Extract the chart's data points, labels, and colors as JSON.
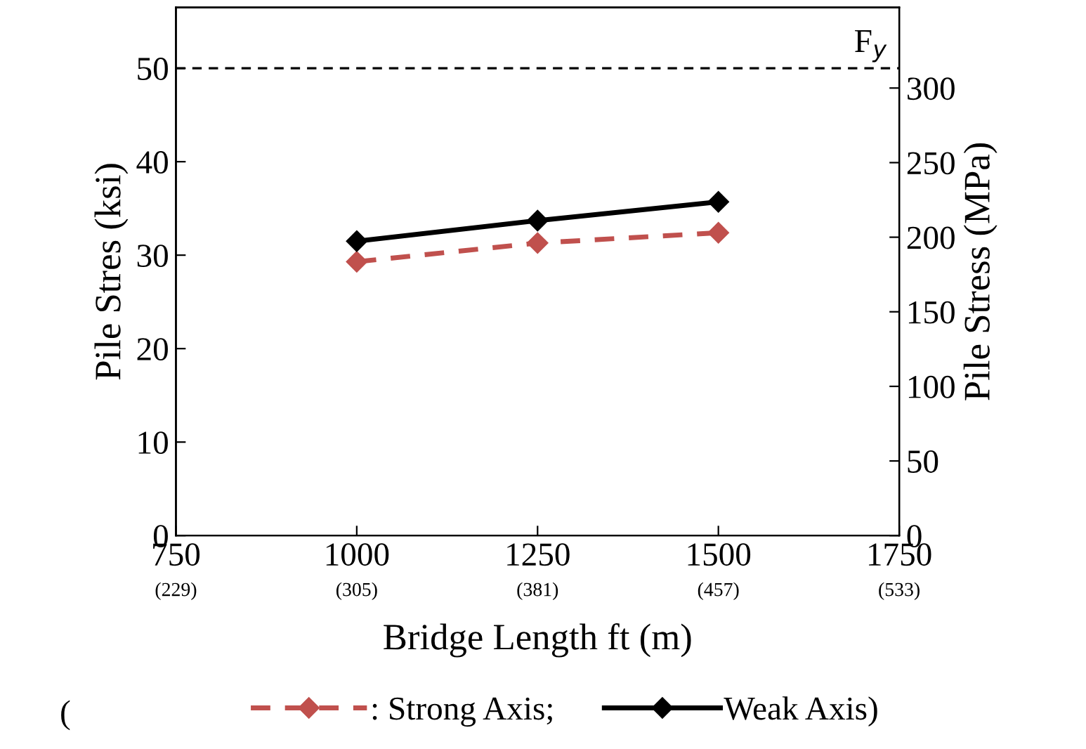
{
  "chart_data": {
    "type": "line",
    "xlabel": "Bridge Length ft (m)",
    "ylabel": "Pile Stres (ksi)",
    "y2label": "Pile Stress (MPa)",
    "x": [
      1000,
      1250,
      1500
    ],
    "series": [
      {
        "name": ": Strong Axis;",
        "color": "#c0504d",
        "values": [
          29.3,
          31.3,
          32.4
        ],
        "line_style": "dashed"
      },
      {
        "name": "Weak Axis)",
        "color": "#000000",
        "values": [
          31.5,
          33.7,
          35.7
        ],
        "line_style": "solid"
      }
    ],
    "marker": "diamond",
    "xlim": [
      750,
      1750
    ],
    "xticks": [
      750,
      1000,
      1250,
      1500,
      1750
    ],
    "x2lim": [
      228.6,
      533.4
    ],
    "x2ticks": [
      {
        "value": 228.6,
        "label": "(229)"
      },
      {
        "value": 304.8,
        "label": "(305)"
      },
      {
        "value": 381,
        "label": "(381)"
      },
      {
        "value": 457.2,
        "label": "(457)"
      },
      {
        "value": 533.4,
        "label": "(533)"
      }
    ],
    "ylim": [
      0,
      56.5
    ],
    "yticks": [
      0,
      10,
      20,
      30,
      40,
      50
    ],
    "y2lim": [
      0,
      354
    ],
    "y2ticks": [
      0,
      50,
      100,
      150,
      200,
      250,
      300
    ],
    "ref_lines": [
      {
        "axis": "y",
        "value": 50,
        "label": "F$_{y}$",
        "color": "#000000",
        "line_style": "dashed"
      }
    ],
    "annotations": [
      "("
    ],
    "grid": false,
    "legend": "bottom"
  }
}
